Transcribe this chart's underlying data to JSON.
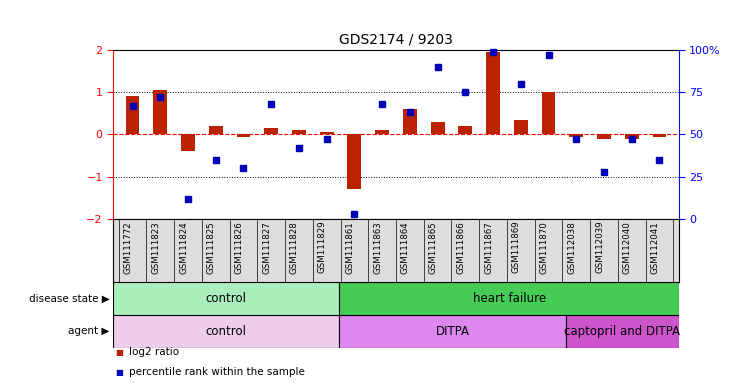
{
  "title": "GDS2174 / 9203",
  "samples": [
    "GSM111772",
    "GSM111823",
    "GSM111824",
    "GSM111825",
    "GSM111826",
    "GSM111827",
    "GSM111828",
    "GSM111829",
    "GSM111861",
    "GSM111863",
    "GSM111864",
    "GSM111865",
    "GSM111866",
    "GSM111867",
    "GSM111869",
    "GSM111870",
    "GSM112038",
    "GSM112039",
    "GSM112040",
    "GSM112041"
  ],
  "log2_ratio": [
    0.9,
    1.05,
    -0.4,
    0.2,
    -0.05,
    0.15,
    0.1,
    0.05,
    -1.3,
    0.1,
    0.6,
    0.3,
    0.2,
    1.95,
    0.35,
    1.0,
    -0.05,
    -0.1,
    -0.12,
    -0.05
  ],
  "percentile": [
    67,
    72,
    12,
    35,
    30,
    68,
    42,
    47,
    3,
    68,
    63,
    90,
    75,
    99,
    80,
    97,
    47,
    28,
    47,
    35
  ],
  "ylim_left": [
    -2,
    2
  ],
  "ylim_right": [
    0,
    100
  ],
  "yticks_left": [
    -2,
    -1,
    0,
    1,
    2
  ],
  "yticks_right": [
    0,
    25,
    50,
    75,
    100
  ],
  "y2ticklabels": [
    "0",
    "25",
    "50",
    "75",
    "100%"
  ],
  "bar_color": "#bb2200",
  "dot_color": "#0000bb",
  "dot_size": 5,
  "xtick_bg": "#dddddd",
  "disease_state_groups": [
    {
      "label": "control",
      "start": 0,
      "end": 8,
      "color": "#aaeebb"
    },
    {
      "label": "heart failure",
      "start": 8,
      "end": 20,
      "color": "#44cc55"
    }
  ],
  "agent_groups": [
    {
      "label": "control",
      "start": 0,
      "end": 8,
      "color": "#eeccee"
    },
    {
      "label": "DITPA",
      "start": 8,
      "end": 16,
      "color": "#dd88ee"
    },
    {
      "label": "captopril and DITPA",
      "start": 16,
      "end": 20,
      "color": "#cc55cc"
    }
  ],
  "legend_items": [
    {
      "color": "#bb2200",
      "label": "log2 ratio"
    },
    {
      "color": "#0000bb",
      "label": "percentile rank within the sample"
    }
  ]
}
